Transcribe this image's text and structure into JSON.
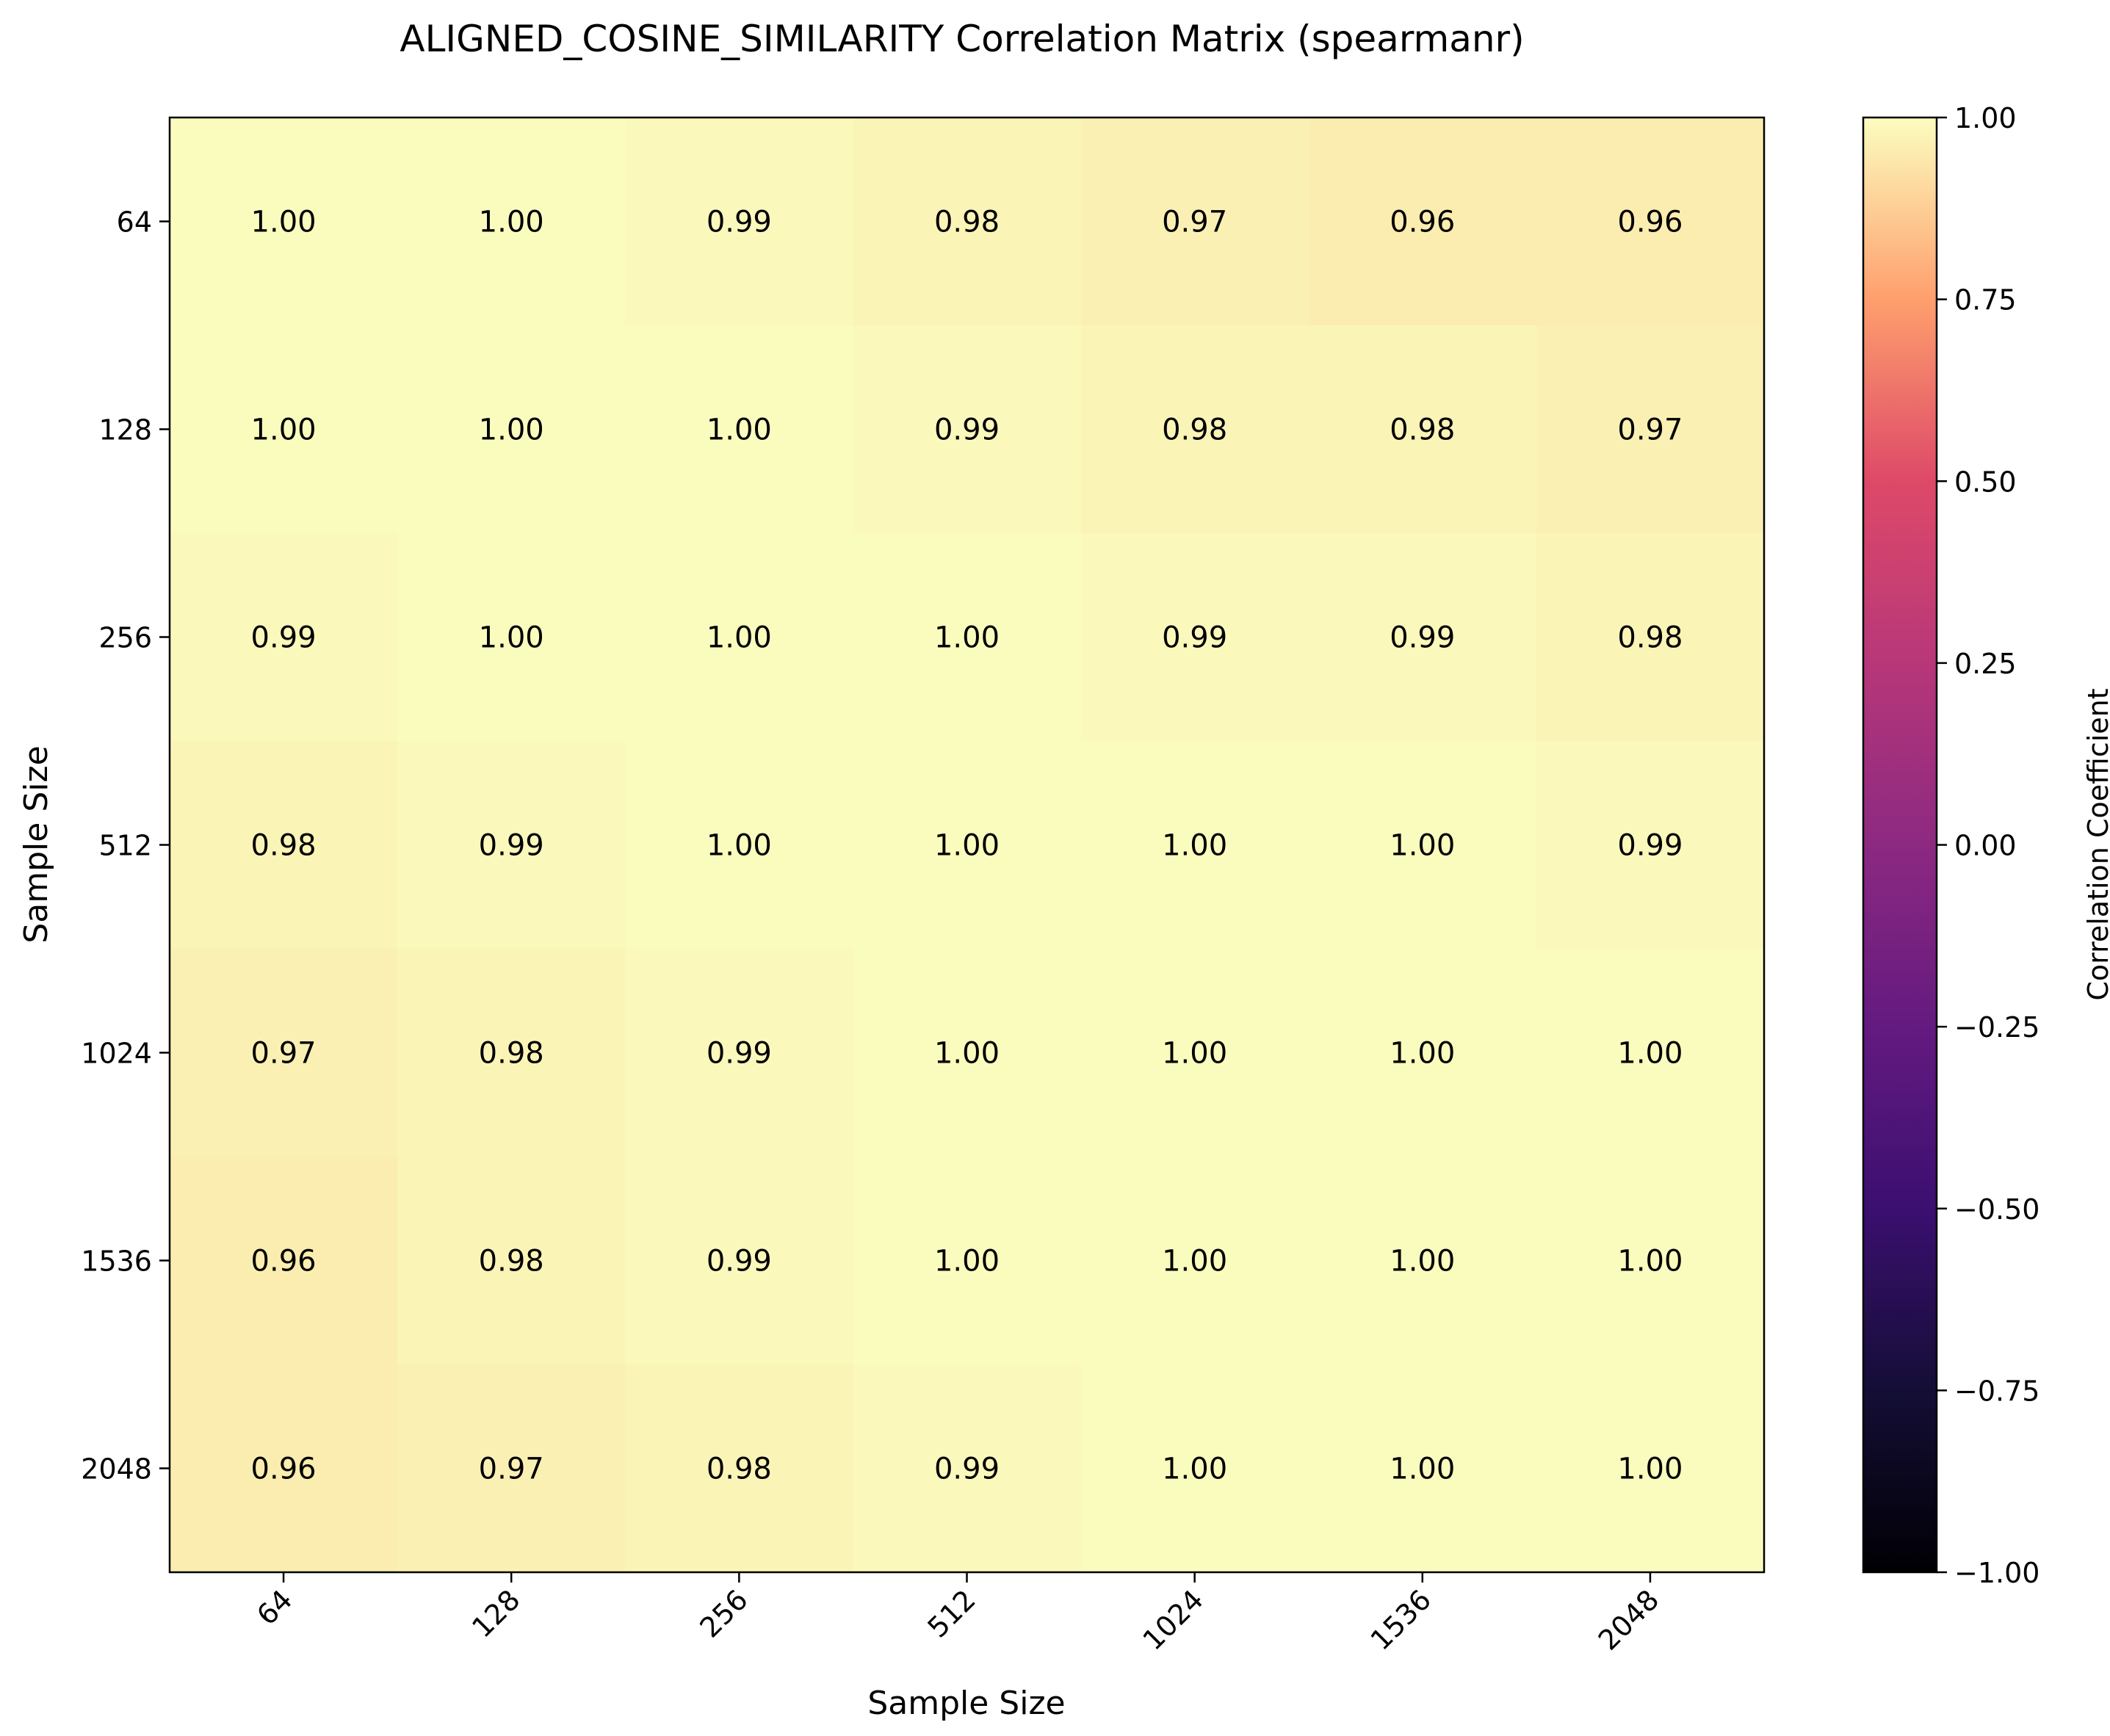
{
  "chart_data": {
    "type": "heatmap",
    "title": "ALIGNED_COSINE_SIMILARITY Correlation Matrix (spearmanr)",
    "xlabel": "Sample Size",
    "ylabel": "Sample Size",
    "x_categories": [
      "64",
      "128",
      "256",
      "512",
      "1024",
      "1536",
      "2048"
    ],
    "y_categories": [
      "64",
      "128",
      "256",
      "512",
      "1024",
      "1536",
      "2048"
    ],
    "values": [
      [
        1.0,
        1.0,
        0.99,
        0.98,
        0.97,
        0.96,
        0.96
      ],
      [
        1.0,
        1.0,
        1.0,
        0.99,
        0.98,
        0.98,
        0.97
      ],
      [
        0.99,
        1.0,
        1.0,
        1.0,
        0.99,
        0.99,
        0.98
      ],
      [
        0.98,
        0.99,
        1.0,
        1.0,
        1.0,
        1.0,
        0.99
      ],
      [
        0.97,
        0.98,
        0.99,
        1.0,
        1.0,
        1.0,
        1.0
      ],
      [
        0.96,
        0.98,
        0.99,
        1.0,
        1.0,
        1.0,
        1.0
      ],
      [
        0.96,
        0.97,
        0.98,
        0.99,
        1.0,
        1.0,
        1.0
      ]
    ],
    "value_format": "0.00",
    "colormap": "magma",
    "colorbar": {
      "label": "Correlation Coefficient",
      "range": [
        -1.0,
        1.0
      ],
      "ticks": [
        "1.00",
        "0.75",
        "0.50",
        "0.25",
        "0.00",
        "−0.25",
        "−0.50",
        "−0.75",
        "−1.00"
      ],
      "tick_values": [
        1.0,
        0.75,
        0.5,
        0.25,
        0.0,
        -0.25,
        -0.5,
        -0.75,
        -1.0
      ]
    },
    "grid": false
  }
}
